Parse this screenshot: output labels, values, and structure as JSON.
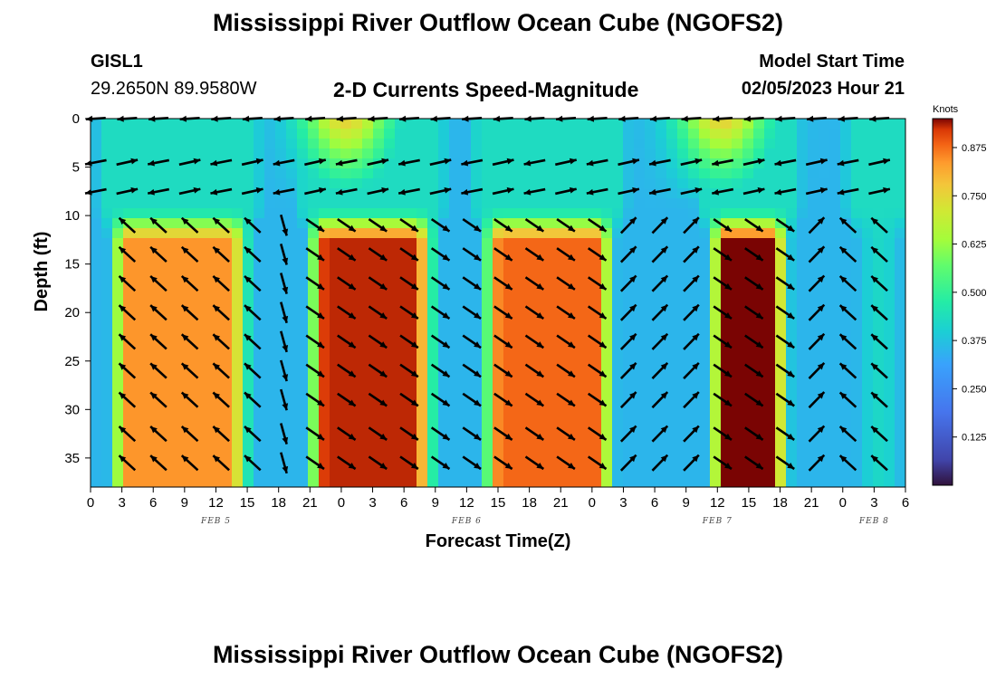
{
  "header": {
    "title": "Mississippi River Outflow Ocean Cube (NGOFS2)",
    "station_id": "GISL1",
    "station_coords": "29.2650N  89.9580W",
    "plot_title": "2-D Currents Speed-Magnitude",
    "model_start_label": "Model Start Time",
    "model_start_value": "02/05/2023 Hour 21"
  },
  "footer": {
    "title": "Mississippi River Outflow Ocean Cube (NGOFS2)"
  },
  "chart_data": {
    "type": "heatmap",
    "title": "2-D Currents Speed-Magnitude",
    "xlabel": "Forecast Time(Z)",
    "ylabel": "Depth (ft)",
    "x_tick_labels": [
      "0",
      "3",
      "6",
      "9",
      "12",
      "15",
      "18",
      "21",
      "0",
      "3",
      "6",
      "9",
      "12",
      "15",
      "18",
      "21",
      "0",
      "3",
      "6",
      "9",
      "12",
      "15",
      "18",
      "21",
      "0",
      "3",
      "6"
    ],
    "x_range_hours": [
      0,
      78
    ],
    "date_labels": [
      {
        "text": "FEB 5",
        "hour": 12
      },
      {
        "text": "FEB 6",
        "hour": 36
      },
      {
        "text": "FEB 7",
        "hour": 60
      },
      {
        "text": "FEB 8",
        "hour": 75
      }
    ],
    "y_ticks": [
      0,
      5,
      10,
      15,
      20,
      25,
      30,
      35
    ],
    "ylim": [
      0,
      38
    ],
    "colorbar": {
      "unit": "Knots",
      "ticks": [
        "0.125",
        "0.250",
        "0.375",
        "0.500",
        "0.625",
        "0.750",
        "0.875"
      ],
      "range": [
        0,
        0.95
      ]
    },
    "high_speed_bands_hours": [
      {
        "start": 1.5,
        "end": 15.5,
        "peak": 0.84
      },
      {
        "start": 20.5,
        "end": 33.2,
        "peak": 0.93
      },
      {
        "start": 37.2,
        "end": 50.5,
        "peak": 0.88
      },
      {
        "start": 58.8,
        "end": 67.2,
        "peak": 0.95
      },
      {
        "start": 73.0,
        "end": 78.0,
        "peak": 0.42
      }
    ],
    "surface_peak_hours": [
      24.5,
      60.5
    ]
  }
}
